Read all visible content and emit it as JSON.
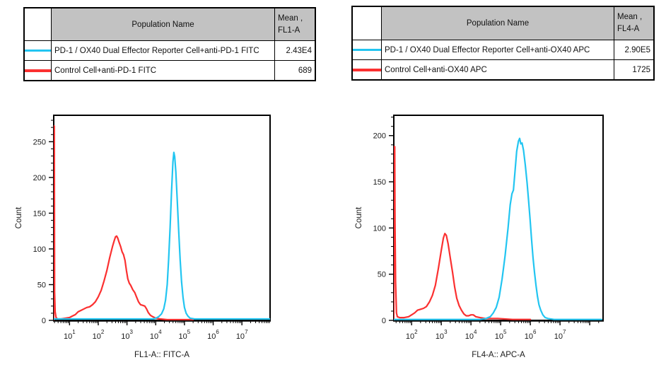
{
  "report": {
    "background": "#FFFFFF"
  },
  "panels": [
    {
      "table": {
        "population_header": "Population Name",
        "mean_header_line1": "Mean ,",
        "mean_header_line2": "FL1-A",
        "rows": [
          {
            "swatch_color": "#22C5F1",
            "name": "PD-1 / OX40 Dual Effector Reporter Cell+anti-PD-1 FITC",
            "mean": "2.43E4"
          },
          {
            "swatch_color": "#FB3030",
            "name": "Control Cell+anti-PD-1 FITC",
            "mean": "689"
          }
        ]
      }
    },
    {
      "table": {
        "population_header": "Population Name",
        "mean_header_line1": "Mean ,",
        "mean_header_line2": "FL4-A",
        "rows": [
          {
            "swatch_color": "#22C5F1",
            "name": "PD-1 / OX40 Dual Effector Reporter Cell+anti-OX40 APC",
            "mean": "2.90E5"
          },
          {
            "swatch_color": "#FB3030",
            "name": "Control Cell+anti-OX40 APC",
            "mean": "1725"
          }
        ]
      }
    }
  ],
  "chart_data": [
    {
      "type": "line",
      "title": "",
      "xlabel": "FL1-A:: FITC-A",
      "ylabel": "Count",
      "x_scale": "log10",
      "grid": false,
      "legend_position": "table-above",
      "x_tick_base": "10",
      "x_tick_exponents": [
        1,
        2,
        3,
        4,
        5,
        6,
        7
      ],
      "x_range": [
        0.45,
        7.98
      ],
      "y_range": [
        0,
        287
      ],
      "y_tick_step": 50,
      "y_minor_step": 10,
      "series": [
        {
          "name": "Control Cell+anti-PD-1 FITC",
          "color": "#FB3030",
          "points": [
            [
              0.45,
              0
            ],
            [
              0.46,
              272
            ],
            [
              0.47,
              272
            ],
            [
              0.48,
              40
            ],
            [
              0.5,
              12
            ],
            [
              0.53,
              4
            ],
            [
              0.58,
              2
            ],
            [
              0.7,
              2
            ],
            [
              0.85,
              3
            ],
            [
              1.0,
              4
            ],
            [
              1.1,
              6
            ],
            [
              1.2,
              8
            ],
            [
              1.3,
              12
            ],
            [
              1.4,
              14
            ],
            [
              1.5,
              16
            ],
            [
              1.6,
              18
            ],
            [
              1.7,
              19
            ],
            [
              1.8,
              22
            ],
            [
              1.9,
              26
            ],
            [
              2.0,
              33
            ],
            [
              2.1,
              42
            ],
            [
              2.2,
              55
            ],
            [
              2.3,
              70
            ],
            [
              2.4,
              88
            ],
            [
              2.5,
              104
            ],
            [
              2.56,
              112
            ],
            [
              2.6,
              117
            ],
            [
              2.64,
              118
            ],
            [
              2.68,
              115
            ],
            [
              2.72,
              110
            ],
            [
              2.78,
              103
            ],
            [
              2.83,
              96
            ],
            [
              2.88,
              92
            ],
            [
              2.93,
              84
            ],
            [
              2.98,
              70
            ],
            [
              3.03,
              58
            ],
            [
              3.08,
              52
            ],
            [
              3.13,
              49
            ],
            [
              3.2,
              43
            ],
            [
              3.27,
              39
            ],
            [
              3.33,
              33
            ],
            [
              3.4,
              26
            ],
            [
              3.47,
              22
            ],
            [
              3.55,
              21
            ],
            [
              3.62,
              20
            ],
            [
              3.68,
              16
            ],
            [
              3.74,
              11
            ],
            [
              3.82,
              7
            ],
            [
              3.9,
              5
            ],
            [
              4.0,
              3
            ],
            [
              4.15,
              2
            ],
            [
              4.4,
              1
            ],
            [
              4.8,
              1
            ],
            [
              5.3,
              1
            ]
          ]
        },
        {
          "name": "PD-1 / OX40 Dual Effector Reporter Cell+anti-PD-1 FITC",
          "color": "#22C5F1",
          "points": [
            [
              0.45,
              2
            ],
            [
              1.5,
              2
            ],
            [
              2.5,
              2
            ],
            [
              3.5,
              2
            ],
            [
              3.9,
              2
            ],
            [
              4.0,
              3
            ],
            [
              4.1,
              5
            ],
            [
              4.2,
              9
            ],
            [
              4.28,
              16
            ],
            [
              4.34,
              28
            ],
            [
              4.4,
              50
            ],
            [
              4.45,
              85
            ],
            [
              4.5,
              130
            ],
            [
              4.55,
              180
            ],
            [
              4.6,
              222
            ],
            [
              4.63,
              235
            ],
            [
              4.66,
              229
            ],
            [
              4.7,
              208
            ],
            [
              4.75,
              168
            ],
            [
              4.8,
              124
            ],
            [
              4.85,
              85
            ],
            [
              4.9,
              54
            ],
            [
              4.95,
              32
            ],
            [
              5.0,
              18
            ],
            [
              5.06,
              10
            ],
            [
              5.12,
              6
            ],
            [
              5.2,
              3
            ],
            [
              5.35,
              2
            ],
            [
              6.0,
              2
            ],
            [
              7.0,
              2
            ],
            [
              7.98,
              2
            ]
          ]
        }
      ]
    },
    {
      "type": "line",
      "title": "",
      "xlabel": "FL4-A:: APC-A",
      "ylabel": "Count",
      "x_scale": "log10",
      "grid": false,
      "legend_position": "table-above",
      "x_tick_base": "10",
      "x_tick_exponents": [
        2,
        3,
        4,
        5,
        6,
        7
      ],
      "x_range": [
        1.4,
        8.45
      ],
      "y_range": [
        0,
        222
      ],
      "y_tick_step": 50,
      "y_minor_step": 10,
      "series": [
        {
          "name": "Control Cell+anti-OX40 APC",
          "color": "#FB3030",
          "points": [
            [
              1.4,
              0
            ],
            [
              1.41,
              188
            ],
            [
              1.43,
              188
            ],
            [
              1.44,
              105
            ],
            [
              1.46,
              42
            ],
            [
              1.49,
              8
            ],
            [
              1.52,
              4
            ],
            [
              1.6,
              3
            ],
            [
              1.75,
              3
            ],
            [
              1.9,
              4
            ],
            [
              2.0,
              6
            ],
            [
              2.1,
              8
            ],
            [
              2.2,
              11
            ],
            [
              2.3,
              12
            ],
            [
              2.4,
              13
            ],
            [
              2.5,
              15
            ],
            [
              2.6,
              20
            ],
            [
              2.7,
              27
            ],
            [
              2.8,
              38
            ],
            [
              2.9,
              56
            ],
            [
              3.0,
              76
            ],
            [
              3.07,
              89
            ],
            [
              3.12,
              94
            ],
            [
              3.17,
              92
            ],
            [
              3.23,
              83
            ],
            [
              3.3,
              68
            ],
            [
              3.38,
              52
            ],
            [
              3.45,
              36
            ],
            [
              3.52,
              24
            ],
            [
              3.6,
              16
            ],
            [
              3.68,
              11
            ],
            [
              3.76,
              7
            ],
            [
              3.84,
              5
            ],
            [
              3.92,
              5
            ],
            [
              4.0,
              6
            ],
            [
              4.08,
              6
            ],
            [
              4.16,
              4
            ],
            [
              4.3,
              3
            ],
            [
              4.5,
              2
            ],
            [
              4.9,
              2
            ],
            [
              5.4,
              1
            ],
            [
              6.0,
              1
            ]
          ]
        },
        {
          "name": "PD-1 / OX40 Dual Effector Reporter Cell+anti-OX40 APC",
          "color": "#22C5F1",
          "points": [
            [
              1.4,
              1
            ],
            [
              2.5,
              1
            ],
            [
              3.5,
              1
            ],
            [
              4.3,
              1
            ],
            [
              4.5,
              2
            ],
            [
              4.65,
              4
            ],
            [
              4.75,
              8
            ],
            [
              4.85,
              14
            ],
            [
              4.95,
              25
            ],
            [
              5.05,
              45
            ],
            [
              5.15,
              70
            ],
            [
              5.25,
              100
            ],
            [
              5.32,
              125
            ],
            [
              5.38,
              137
            ],
            [
              5.43,
              141
            ],
            [
              5.48,
              160
            ],
            [
              5.54,
              183
            ],
            [
              5.6,
              194
            ],
            [
              5.64,
              197
            ],
            [
              5.68,
              191
            ],
            [
              5.72,
              192
            ],
            [
              5.77,
              184
            ],
            [
              5.83,
              168
            ],
            [
              5.89,
              149
            ],
            [
              5.94,
              130
            ],
            [
              5.99,
              110
            ],
            [
              6.04,
              88
            ],
            [
              6.09,
              68
            ],
            [
              6.14,
              52
            ],
            [
              6.19,
              38
            ],
            [
              6.24,
              26
            ],
            [
              6.29,
              17
            ],
            [
              6.35,
              11
            ],
            [
              6.42,
              6
            ],
            [
              6.5,
              3
            ],
            [
              6.6,
              2
            ],
            [
              6.8,
              1
            ],
            [
              7.5,
              1
            ],
            [
              8.4,
              1
            ]
          ]
        }
      ]
    }
  ]
}
